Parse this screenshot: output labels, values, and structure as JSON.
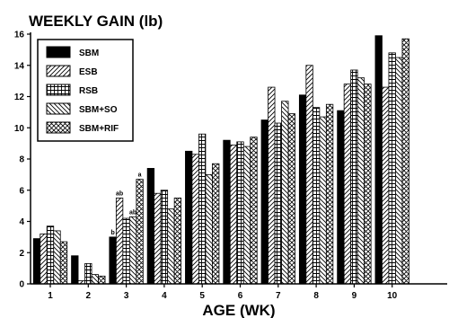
{
  "chart_data": {
    "type": "bar",
    "title": "WEEKLY GAIN (lb)",
    "xlabel": "AGE (WK)",
    "ylabel": "",
    "ylim": [
      0,
      16
    ],
    "yticks": [
      0,
      2,
      4,
      6,
      8,
      10,
      12,
      14,
      16
    ],
    "grid": false,
    "legend_position": "top-left",
    "categories": [
      "1",
      "2",
      "3",
      "4",
      "5",
      "6",
      "7",
      "8",
      "9",
      "10"
    ],
    "series": [
      {
        "name": "SBM",
        "pattern": "solid",
        "values": [
          2.9,
          1.8,
          3.0,
          7.4,
          8.5,
          9.2,
          10.5,
          12.1,
          11.1,
          15.9
        ]
      },
      {
        "name": "ESB",
        "pattern": "diagonal",
        "values": [
          3.2,
          0.2,
          5.5,
          5.8,
          8.3,
          8.9,
          12.6,
          14.0,
          12.8,
          12.6
        ]
      },
      {
        "name": "RSB",
        "pattern": "grid",
        "values": [
          3.7,
          1.3,
          4.2,
          6.0,
          9.6,
          9.1,
          10.3,
          11.3,
          13.7,
          14.8
        ]
      },
      {
        "name": "SBM+SO",
        "pattern": "backslash",
        "values": [
          3.4,
          0.6,
          4.3,
          4.8,
          7.0,
          8.8,
          11.7,
          10.7,
          13.2,
          14.5
        ]
      },
      {
        "name": "SBM+RIF",
        "pattern": "crosshatch",
        "values": [
          2.7,
          0.5,
          6.7,
          5.5,
          7.7,
          9.4,
          10.9,
          11.5,
          12.8,
          15.7
        ]
      }
    ],
    "annotations": [
      {
        "category": "3",
        "series": "SBM",
        "text": "b"
      },
      {
        "category": "3",
        "series": "ESB",
        "text": "ab"
      },
      {
        "category": "3",
        "series": "SBM+SO",
        "text": "ab"
      },
      {
        "category": "3",
        "series": "SBM+RIF",
        "text": "a"
      }
    ]
  }
}
